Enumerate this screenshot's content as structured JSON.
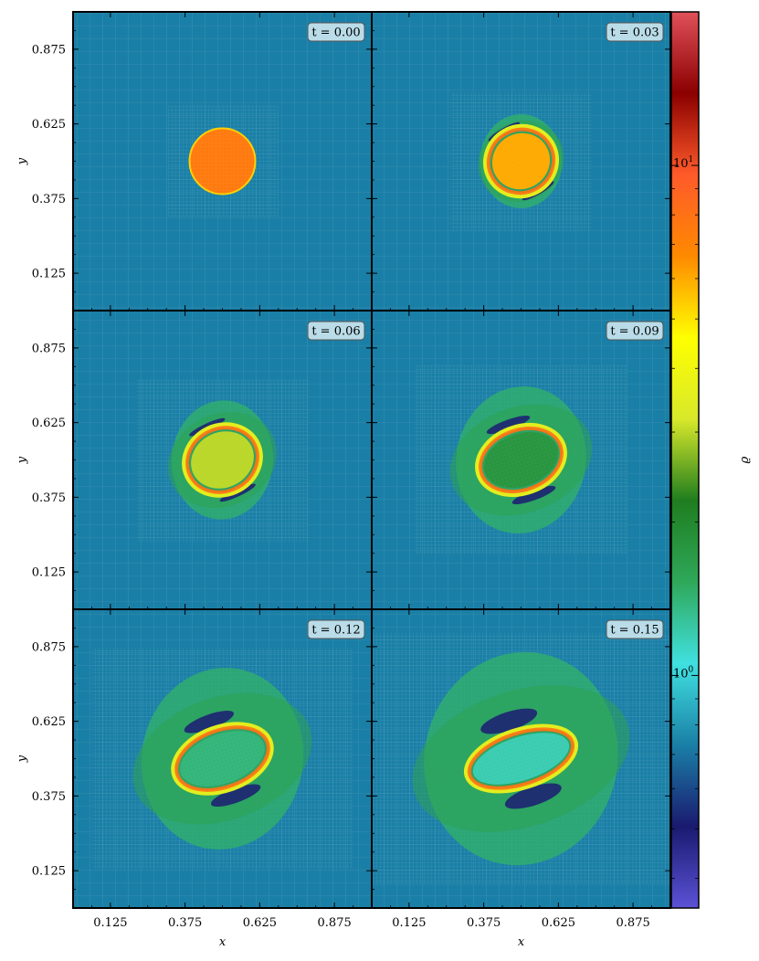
{
  "chart_data": {
    "type": "heatmap",
    "description_type": "image-panels",
    "panels": [
      {
        "time_label": "t = 0.00",
        "t": 0.0,
        "blob": {
          "shape": "circle",
          "rx": 0.11,
          "ry": 0.11,
          "rotation_deg": 0,
          "core_rho": 7.5,
          "wave_extent": 0
        }
      },
      {
        "time_label": "t = 0.03",
        "t": 0.03,
        "blob": {
          "shape": "ellipse",
          "rx": 0.11,
          "ry": 0.105,
          "rotation_deg": -30,
          "core_rho": 6.0,
          "wave_extent": 0.05
        }
      },
      {
        "time_label": "t = 0.06",
        "t": 0.06,
        "blob": {
          "shape": "ellipse",
          "rx": 0.12,
          "ry": 0.105,
          "rotation_deg": -25,
          "core_rho": 3.0,
          "wave_extent": 0.09
        }
      },
      {
        "time_label": "t = 0.09",
        "t": 0.09,
        "blob": {
          "shape": "ellipse",
          "rx": 0.14,
          "ry": 0.1,
          "rotation_deg": -20,
          "core_rho": 1.8,
          "wave_extent": 0.14
        }
      },
      {
        "time_label": "t = 0.12",
        "t": 0.12,
        "blob": {
          "shape": "ellipse",
          "rx": 0.16,
          "ry": 0.095,
          "rotation_deg": -20,
          "core_rho": 1.4,
          "wave_extent": 0.2
        }
      },
      {
        "time_label": "t = 0.15",
        "t": 0.15,
        "blob": {
          "shape": "ellipse",
          "rx": 0.18,
          "ry": 0.085,
          "rotation_deg": -18,
          "core_rho": 1.2,
          "wave_extent": 0.26
        }
      }
    ],
    "xlabel": "x",
    "ylabel": "y",
    "xlim": [
      0,
      1
    ],
    "ylim": [
      0,
      1
    ],
    "xticks": [
      0.125,
      0.375,
      0.625,
      0.875
    ],
    "xtick_labels": [
      "0.125",
      "0.375",
      "0.625",
      "0.875"
    ],
    "yticks": [
      0.125,
      0.375,
      0.625,
      0.875
    ],
    "ytick_labels": [
      "0.125",
      "0.375",
      "0.625",
      "0.875"
    ],
    "center": [
      0.5,
      0.5
    ],
    "colorbar": {
      "label": "ϱ",
      "scale": "log",
      "range": [
        0.35,
        20
      ],
      "tick_labels": [
        {
          "value": 10,
          "base": "10",
          "exp": "1"
        },
        {
          "value": 1,
          "base": "10",
          "exp": "0"
        }
      ]
    },
    "colors": {
      "background": "#1a7fa6",
      "grid_mesh": "#7fb6cf",
      "panel_border": "#000000"
    },
    "colormap": [
      "#5b52d6",
      "#1a1a70",
      "#1a7fa6",
      "#40e0e0",
      "#2fa85a",
      "#1f7d1f",
      "#d8e82a",
      "#ffff00",
      "#ff8a00",
      "#ff5a2a",
      "#8b0000",
      "#e0505a"
    ]
  }
}
